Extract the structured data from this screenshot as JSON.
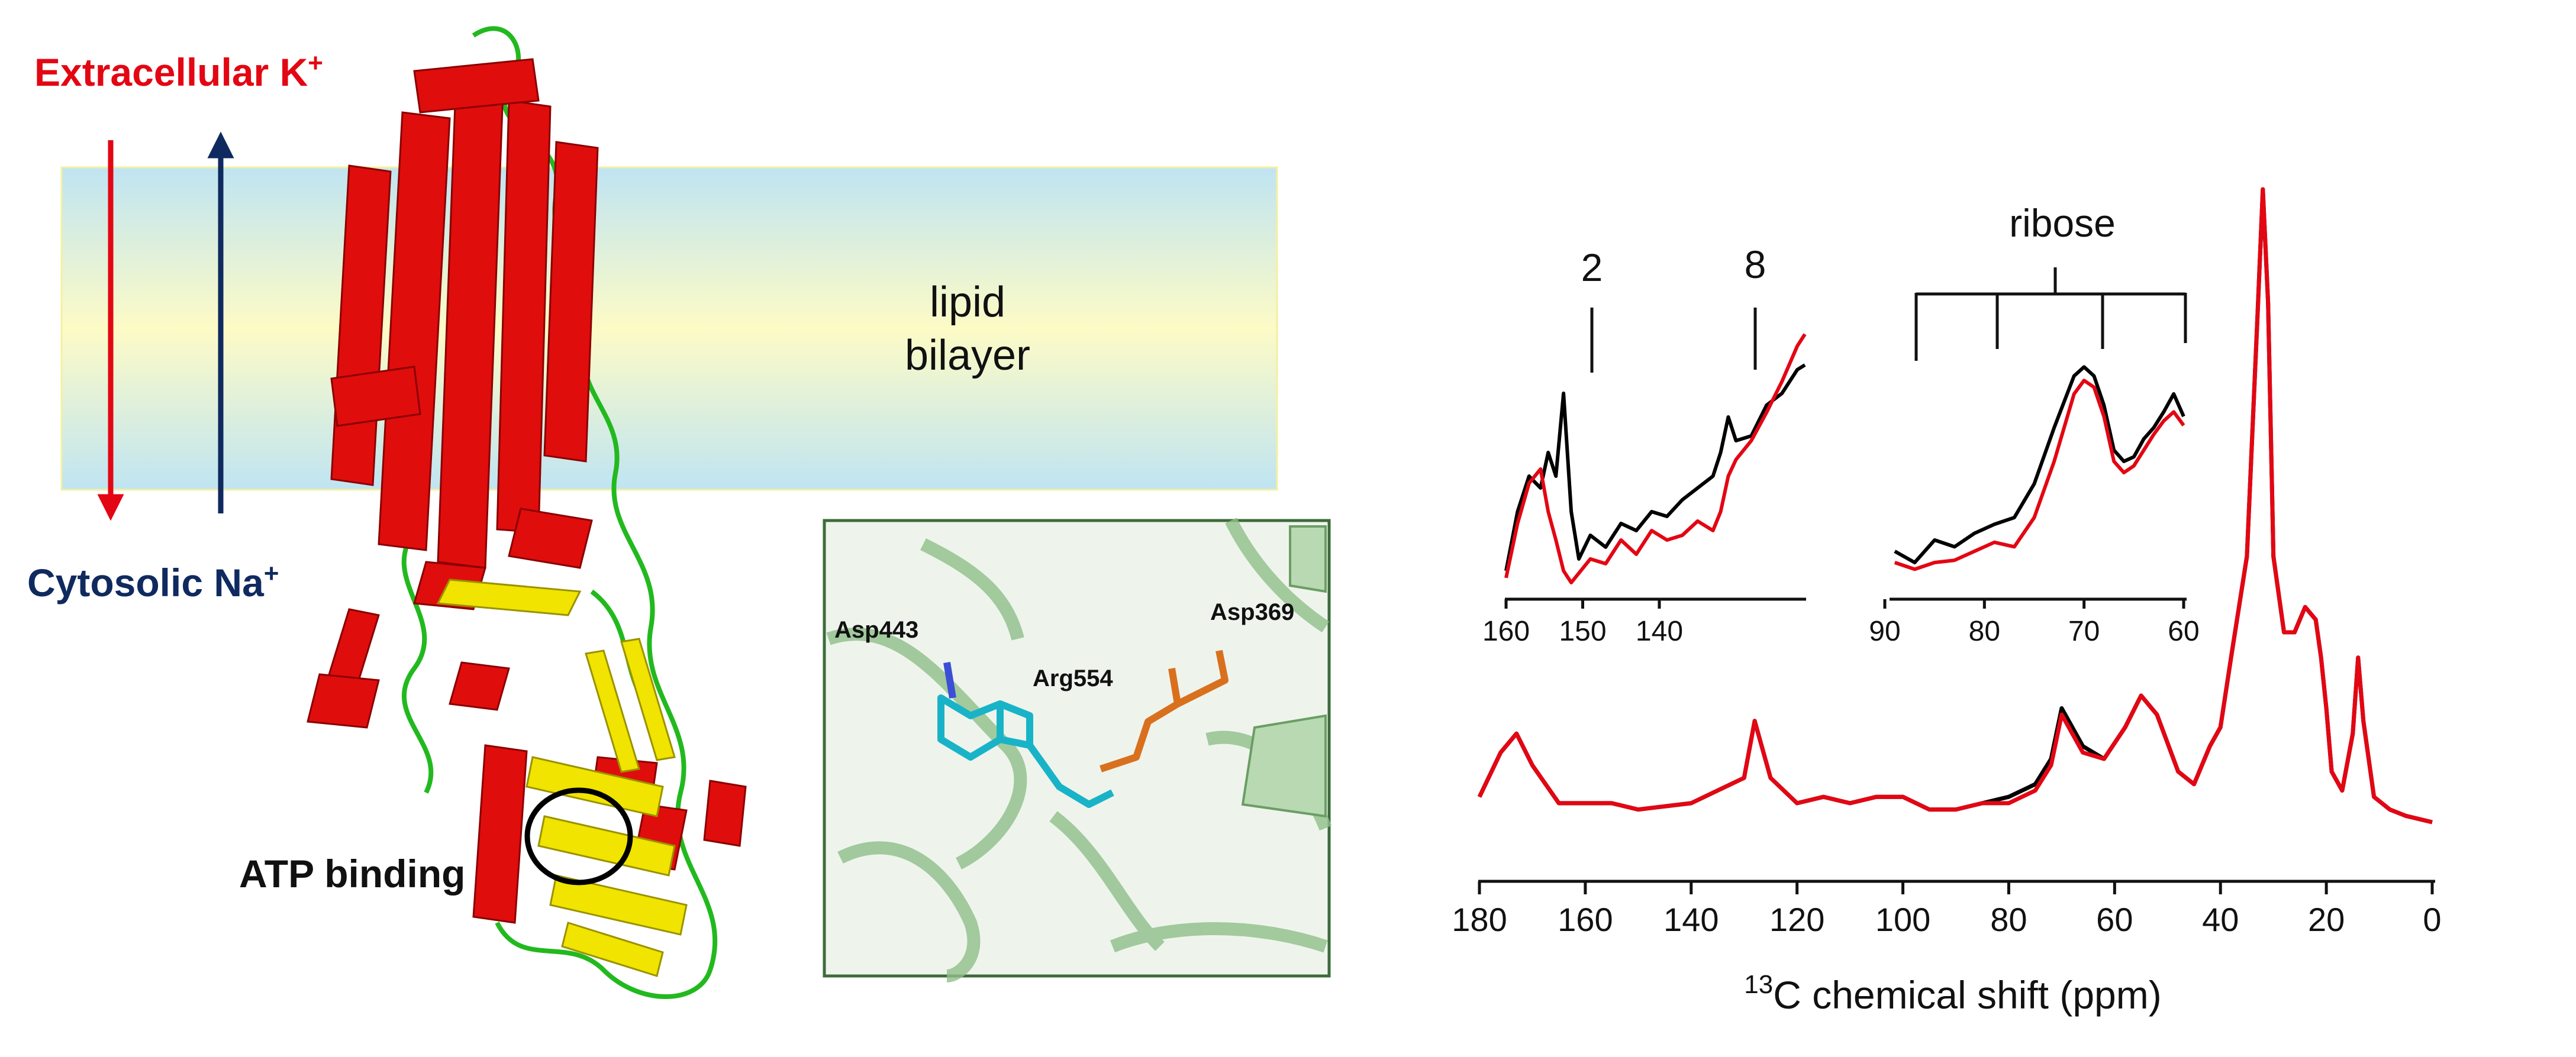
{
  "membrane": {
    "extracellular_label": "Extracellular K",
    "extracellular_sup": "+",
    "cytosolic_label": "Cytosolic Na",
    "cytosolic_sup": "+",
    "bilayer_line1": "lipid",
    "bilayer_line2": "bilayer",
    "atp_label": "ATP binding",
    "colors": {
      "helix": "#e00d0d",
      "sheet": "#f0e400",
      "loop": "#22b91e",
      "k_arrow": "#e30613",
      "na_arrow": "#0f2a5f"
    }
  },
  "inset": {
    "residues": [
      "Asp443",
      "Arg554",
      "Asp369"
    ]
  },
  "spectrum": {
    "axis_label": "C chemical shift (ppm)",
    "axis_sup": "13",
    "series_colors": [
      "#000000",
      "#e30613"
    ]
  },
  "chart_data": [
    {
      "type": "line",
      "xlabel": "13C chemical shift (ppm)",
      "xlim": [
        180,
        0
      ],
      "x_ticks": [
        "180",
        "160",
        "140",
        "120",
        "100",
        "80",
        "60",
        "40",
        "20",
        "0"
      ],
      "series": [
        {
          "x": [
            180,
            176,
            173,
            170,
            165,
            155,
            150,
            140,
            130,
            128,
            125,
            120,
            115,
            110,
            105,
            100,
            95,
            90,
            85,
            80,
            75,
            72,
            70,
            66,
            62,
            58,
            55,
            52,
            48,
            45,
            42,
            40,
            38,
            35,
            33,
            32,
            31,
            30,
            28,
            26,
            24,
            22,
            21,
            20,
            19,
            17,
            15,
            14,
            13,
            11,
            8,
            5,
            0
          ],
          "y": [
            0.04,
            0.11,
            0.14,
            0.09,
            0.03,
            0.03,
            0.02,
            0.03,
            0.07,
            0.16,
            0.07,
            0.03,
            0.04,
            0.03,
            0.04,
            0.04,
            0.02,
            0.02,
            0.03,
            0.04,
            0.06,
            0.1,
            0.18,
            0.12,
            0.1,
            0.15,
            0.2,
            0.17,
            0.08,
            0.06,
            0.12,
            0.15,
            0.26,
            0.42,
            0.8,
            1.0,
            0.82,
            0.42,
            0.3,
            0.3,
            0.34,
            0.32,
            0.26,
            0.18,
            0.08,
            0.05,
            0.14,
            0.26,
            0.16,
            0.04,
            0.02,
            0.01,
            0.0
          ]
        },
        {
          "x": [
            180,
            176,
            173,
            170,
            165,
            155,
            150,
            140,
            130,
            128,
            125,
            120,
            115,
            110,
            105,
            100,
            95,
            90,
            85,
            80,
            75,
            72,
            70,
            66,
            62,
            58,
            55,
            52,
            48,
            45,
            42,
            40,
            38,
            35,
            33,
            32,
            31,
            30,
            28,
            26,
            24,
            22,
            21,
            20,
            19,
            17,
            15,
            14,
            13,
            11,
            8,
            5,
            0
          ],
          "y": [
            0.04,
            0.11,
            0.14,
            0.09,
            0.03,
            0.03,
            0.02,
            0.03,
            0.07,
            0.16,
            0.07,
            0.03,
            0.04,
            0.03,
            0.04,
            0.04,
            0.02,
            0.02,
            0.03,
            0.03,
            0.05,
            0.09,
            0.17,
            0.11,
            0.1,
            0.15,
            0.2,
            0.17,
            0.08,
            0.06,
            0.12,
            0.15,
            0.26,
            0.42,
            0.8,
            1.0,
            0.82,
            0.42,
            0.3,
            0.3,
            0.34,
            0.32,
            0.26,
            0.18,
            0.08,
            0.05,
            0.14,
            0.26,
            0.16,
            0.04,
            0.02,
            0.01,
            0.0
          ]
        }
      ]
    },
    {
      "type": "line",
      "xlim": [
        160,
        121
      ],
      "x_ticks": [
        "160",
        "150",
        "140"
      ],
      "annotations": [
        "2",
        "8"
      ],
      "series": [
        {
          "x": [
            160,
            158.5,
            157,
            155.5,
            154.5,
            153.5,
            152.5,
            151.5,
            150.5,
            149,
            147,
            145,
            143,
            141,
            139,
            137,
            135,
            133,
            132,
            131,
            130,
            128,
            126,
            124,
            122,
            121
          ],
          "y": [
            0.05,
            0.3,
            0.45,
            0.4,
            0.55,
            0.45,
            0.8,
            0.3,
            0.1,
            0.2,
            0.15,
            0.25,
            0.22,
            0.3,
            0.28,
            0.35,
            0.4,
            0.45,
            0.55,
            0.7,
            0.6,
            0.62,
            0.75,
            0.8,
            0.9,
            0.92
          ]
        },
        {
          "x": [
            160,
            158.5,
            157,
            155.5,
            154.5,
            153.5,
            152.5,
            151.5,
            150.5,
            149,
            147,
            145,
            143,
            141,
            139,
            137,
            135,
            133,
            132,
            131,
            130,
            128,
            126,
            124,
            122,
            121
          ],
          "y": [
            0.02,
            0.25,
            0.42,
            0.48,
            0.3,
            0.18,
            0.05,
            0.0,
            0.04,
            0.1,
            0.08,
            0.18,
            0.12,
            0.22,
            0.18,
            0.2,
            0.26,
            0.22,
            0.3,
            0.45,
            0.52,
            0.6,
            0.72,
            0.85,
            1.0,
            1.05
          ]
        }
      ]
    },
    {
      "type": "line",
      "xlim": [
        90,
        60
      ],
      "x_ticks": [
        "90",
        "80",
        "70",
        "60"
      ],
      "annotations": [
        "ribose"
      ],
      "series": [
        {
          "x": [
            89,
            87,
            85,
            83,
            81,
            79,
            77,
            75,
            73,
            71,
            70,
            69,
            68,
            67,
            66,
            65,
            64,
            63,
            62,
            61,
            60
          ],
          "y": [
            0.1,
            0.05,
            0.15,
            0.12,
            0.18,
            0.22,
            0.25,
            0.4,
            0.65,
            0.88,
            0.92,
            0.88,
            0.75,
            0.55,
            0.5,
            0.52,
            0.6,
            0.65,
            0.72,
            0.8,
            0.7
          ]
        },
        {
          "x": [
            89,
            87,
            85,
            83,
            81,
            79,
            77,
            75,
            73,
            71,
            70,
            69,
            68,
            67,
            66,
            65,
            64,
            63,
            62,
            61,
            60
          ],
          "y": [
            0.05,
            0.02,
            0.05,
            0.06,
            0.1,
            0.14,
            0.12,
            0.25,
            0.5,
            0.8,
            0.86,
            0.83,
            0.7,
            0.5,
            0.45,
            0.48,
            0.55,
            0.62,
            0.68,
            0.72,
            0.66
          ]
        }
      ]
    }
  ]
}
